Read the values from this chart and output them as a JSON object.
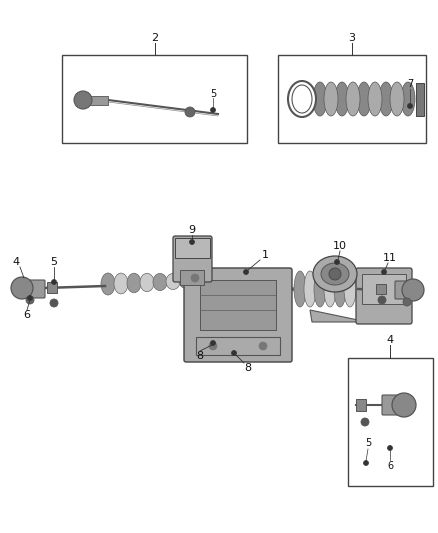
{
  "bg_color": "#ffffff",
  "fig_width": 4.38,
  "fig_height": 5.33,
  "dpi": 100,
  "line_color": "#333333",
  "text_color": "#111111",
  "box_line_color": "#444444",
  "part_color": "#888888",
  "part_dark": "#555555",
  "part_light": "#bbbbbb",
  "part_mid": "#999999"
}
